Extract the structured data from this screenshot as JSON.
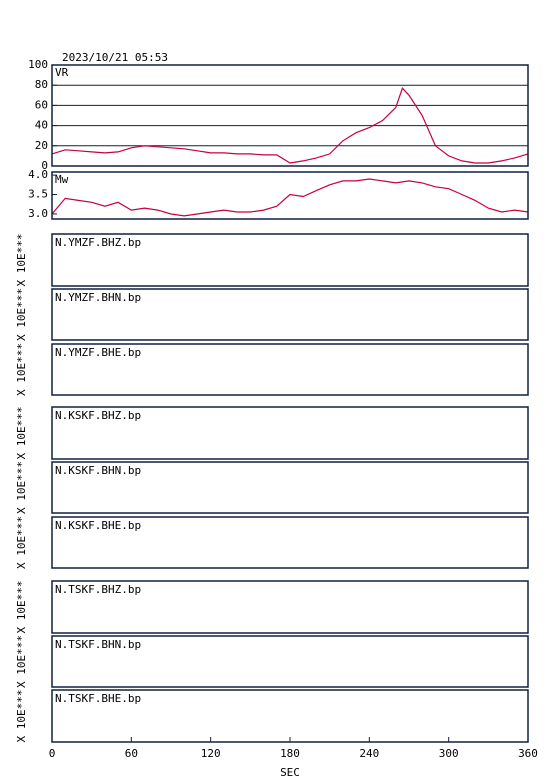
{
  "title": "2023/10/21 05:53",
  "x_axis": {
    "xlim": [
      0,
      360
    ],
    "xticks": [
      0,
      60,
      120,
      180,
      240,
      300,
      360
    ],
    "label": "SEC"
  },
  "chart_data": [
    {
      "type": "line",
      "ylabel": "VR",
      "color": "#c8003c",
      "grid": true,
      "x": [
        0,
        10,
        20,
        30,
        40,
        50,
        60,
        70,
        80,
        90,
        100,
        110,
        120,
        130,
        140,
        150,
        160,
        170,
        180,
        190,
        200,
        210,
        220,
        230,
        240,
        250,
        260,
        265,
        270,
        280,
        290,
        300,
        310,
        320,
        330,
        340,
        350,
        360
      ],
      "values": [
        12,
        16,
        15,
        14,
        13,
        14,
        18,
        20,
        19,
        18,
        17,
        15,
        13,
        13,
        12,
        12,
        11,
        11,
        3,
        5,
        8,
        12,
        25,
        33,
        38,
        45,
        58,
        77,
        70,
        50,
        20,
        10,
        5,
        3,
        3,
        5,
        8,
        12
      ],
      "ylim": [
        0,
        100
      ],
      "yticks": [
        0,
        20,
        40,
        60,
        80,
        100
      ]
    },
    {
      "type": "line",
      "ylabel": "Mw",
      "color": "#c8003c",
      "grid": false,
      "x": [
        0,
        10,
        20,
        30,
        40,
        50,
        60,
        70,
        80,
        90,
        100,
        110,
        120,
        130,
        140,
        150,
        160,
        170,
        180,
        190,
        200,
        210,
        220,
        230,
        240,
        250,
        260,
        270,
        280,
        290,
        300,
        310,
        320,
        330,
        340,
        350,
        360
      ],
      "values": [
        3.0,
        3.4,
        3.35,
        3.3,
        3.2,
        3.3,
        3.1,
        3.15,
        3.1,
        3.0,
        2.95,
        3.0,
        3.05,
        3.1,
        3.05,
        3.05,
        3.1,
        3.2,
        3.5,
        3.45,
        3.6,
        3.75,
        3.85,
        3.85,
        3.9,
        3.85,
        3.8,
        3.85,
        3.8,
        3.7,
        3.65,
        3.5,
        3.35,
        3.15,
        3.05,
        3.1,
        3.05
      ],
      "ylim": [
        2.87,
        4.08
      ],
      "yticks": [
        {
          "value": 3,
          "label": "3.0"
        },
        3.5,
        {
          "value": 4,
          "label": "4.0"
        }
      ]
    }
  ],
  "panels": [
    {
      "label": "N.YMZF.BHZ.bp",
      "ylabel": "X 10E***"
    },
    {
      "label": "N.YMZF.BHN.bp",
      "ylabel": "X 10E***"
    },
    {
      "label": "N.YMZF.BHE.bp",
      "ylabel": "X 10E***"
    },
    {
      "label": "N.KSKF.BHZ.bp",
      "ylabel": "X 10E***"
    },
    {
      "label": "N.KSKF.BHN.bp",
      "ylabel": "X 10E***"
    },
    {
      "label": "N.KSKF.BHE.bp",
      "ylabel": "X 10E***"
    },
    {
      "label": "N.TSKF.BHZ.bp",
      "ylabel": "X 10E***"
    },
    {
      "label": "N.TSKF.BHN.bp",
      "ylabel": "X 10E***"
    },
    {
      "label": "N.TSKF.BHE.bp",
      "ylabel": "X 10E***"
    }
  ]
}
